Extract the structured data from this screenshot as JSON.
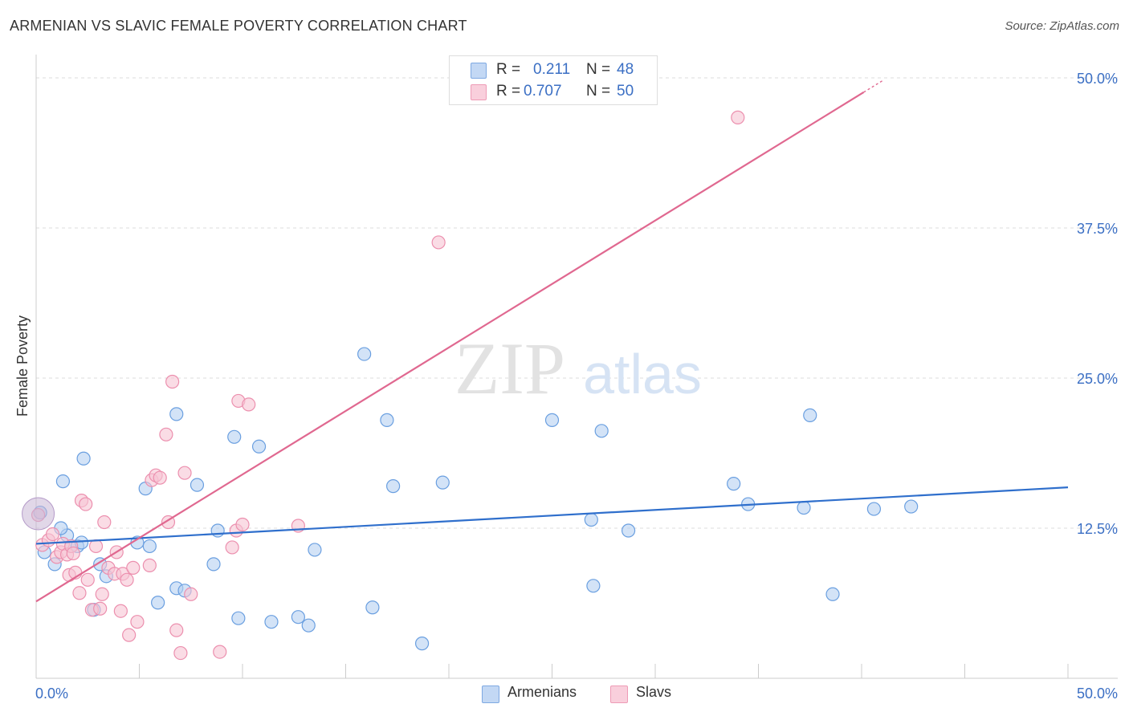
{
  "header": {
    "title": "ARMENIAN VS SLAVIC FEMALE POVERTY CORRELATION CHART",
    "source": "Source: ZipAtlas.com"
  },
  "watermark": {
    "zip": "ZIP",
    "atlas": "atlas"
  },
  "legend": {
    "rows": [
      {
        "r_label": "R =",
        "r_value": "0.211",
        "n_label": "N =",
        "n_value": "48",
        "color": "#a9c8f0"
      },
      {
        "r_label": "R =",
        "r_value": "0.707",
        "n_label": "N =",
        "n_value": "50",
        "color": "#f6b8cb"
      }
    ]
  },
  "bottom_legend": {
    "armenians": "Armenians",
    "slavs": "Slavs"
  },
  "chart_data": {
    "type": "scatter",
    "ylabel": "Female Poverty",
    "xlim": [
      0,
      50
    ],
    "ylim": [
      0,
      50
    ],
    "y_ticks": [
      "12.5%",
      "25.0%",
      "37.5%",
      "50.0%"
    ],
    "y_tick_values": [
      12.5,
      25,
      37.5,
      50
    ],
    "x_tick_labels": {
      "min": "0.0%",
      "max": "50.0%"
    },
    "grid": true,
    "legend_position": "top-center",
    "series": [
      {
        "name": "Armenians",
        "color": "#6a9fe0",
        "fill": "#b5d0f2",
        "trend": {
          "x": [
            0,
            50
          ],
          "y": [
            11.2,
            15.9
          ],
          "color": "#2f6fcc"
        },
        "points": [
          [
            0.2,
            13.8
          ],
          [
            0.4,
            10.5
          ],
          [
            0.9,
            9.5
          ],
          [
            1.3,
            16.4
          ],
          [
            1.5,
            11.9
          ],
          [
            1.2,
            12.5
          ],
          [
            1.7,
            11.0
          ],
          [
            2.0,
            11.0
          ],
          [
            2.2,
            11.3
          ],
          [
            2.3,
            18.3
          ],
          [
            2.8,
            5.7
          ],
          [
            3.1,
            9.5
          ],
          [
            3.4,
            8.5
          ],
          [
            4.9,
            11.3
          ],
          [
            5.3,
            15.8
          ],
          [
            5.5,
            11.0
          ],
          [
            5.9,
            6.3
          ],
          [
            6.8,
            7.5
          ],
          [
            7.2,
            7.3
          ],
          [
            6.8,
            22.0
          ],
          [
            7.8,
            16.1
          ],
          [
            8.6,
            9.5
          ],
          [
            8.8,
            12.3
          ],
          [
            9.6,
            20.1
          ],
          [
            9.8,
            5.0
          ],
          [
            10.8,
            19.3
          ],
          [
            11.4,
            4.7
          ],
          [
            12.7,
            5.1
          ],
          [
            13.2,
            4.4
          ],
          [
            13.5,
            10.7
          ],
          [
            15.9,
            27.0
          ],
          [
            16.3,
            5.9
          ],
          [
            17.0,
            21.5
          ],
          [
            17.3,
            16.0
          ],
          [
            18.7,
            2.9
          ],
          [
            19.7,
            16.3
          ],
          [
            25.0,
            21.5
          ],
          [
            26.9,
            13.2
          ],
          [
            27.0,
            7.7
          ],
          [
            27.4,
            20.6
          ],
          [
            28.7,
            12.3
          ],
          [
            33.8,
            16.2
          ],
          [
            34.5,
            14.5
          ],
          [
            37.2,
            14.2
          ],
          [
            37.5,
            21.9
          ],
          [
            38.6,
            7.0
          ],
          [
            40.6,
            14.1
          ],
          [
            42.4,
            14.3
          ]
        ]
      },
      {
        "name": "Slavs",
        "color": "#ec8fae",
        "fill": "#f7c4d4",
        "trend": {
          "x": [
            0,
            40.1
          ],
          "y": [
            6.4,
            48.8
          ],
          "color": "#e06890"
        },
        "points": [
          [
            0.1,
            13.6
          ],
          [
            0.3,
            11.1
          ],
          [
            0.6,
            11.5
          ],
          [
            0.8,
            12.0
          ],
          [
            1.0,
            10.1
          ],
          [
            1.2,
            10.5
          ],
          [
            1.3,
            11.2
          ],
          [
            1.5,
            10.3
          ],
          [
            1.6,
            8.6
          ],
          [
            1.7,
            11.0
          ],
          [
            1.8,
            10.4
          ],
          [
            1.9,
            8.8
          ],
          [
            2.1,
            7.1
          ],
          [
            2.2,
            14.8
          ],
          [
            2.4,
            14.5
          ],
          [
            2.5,
            8.2
          ],
          [
            2.7,
            5.7
          ],
          [
            2.9,
            11.0
          ],
          [
            3.1,
            5.8
          ],
          [
            3.2,
            7.0
          ],
          [
            3.3,
            13.0
          ],
          [
            3.5,
            9.2
          ],
          [
            3.8,
            8.7
          ],
          [
            3.9,
            10.5
          ],
          [
            4.1,
            5.6
          ],
          [
            4.2,
            8.7
          ],
          [
            4.4,
            8.2
          ],
          [
            4.5,
            3.6
          ],
          [
            4.7,
            9.2
          ],
          [
            4.9,
            4.7
          ],
          [
            5.5,
            9.4
          ],
          [
            5.6,
            16.5
          ],
          [
            5.8,
            16.9
          ],
          [
            6.0,
            16.7
          ],
          [
            6.3,
            20.3
          ],
          [
            6.4,
            13.0
          ],
          [
            6.6,
            24.7
          ],
          [
            6.8,
            4.0
          ],
          [
            7.0,
            2.1
          ],
          [
            7.2,
            17.1
          ],
          [
            7.5,
            7.0
          ],
          [
            8.9,
            2.2
          ],
          [
            9.5,
            10.9
          ],
          [
            9.7,
            12.3
          ],
          [
            9.8,
            23.1
          ],
          [
            10.0,
            12.8
          ],
          [
            10.3,
            22.8
          ],
          [
            12.7,
            12.7
          ],
          [
            19.5,
            36.3
          ],
          [
            34.0,
            46.7
          ]
        ]
      }
    ]
  }
}
